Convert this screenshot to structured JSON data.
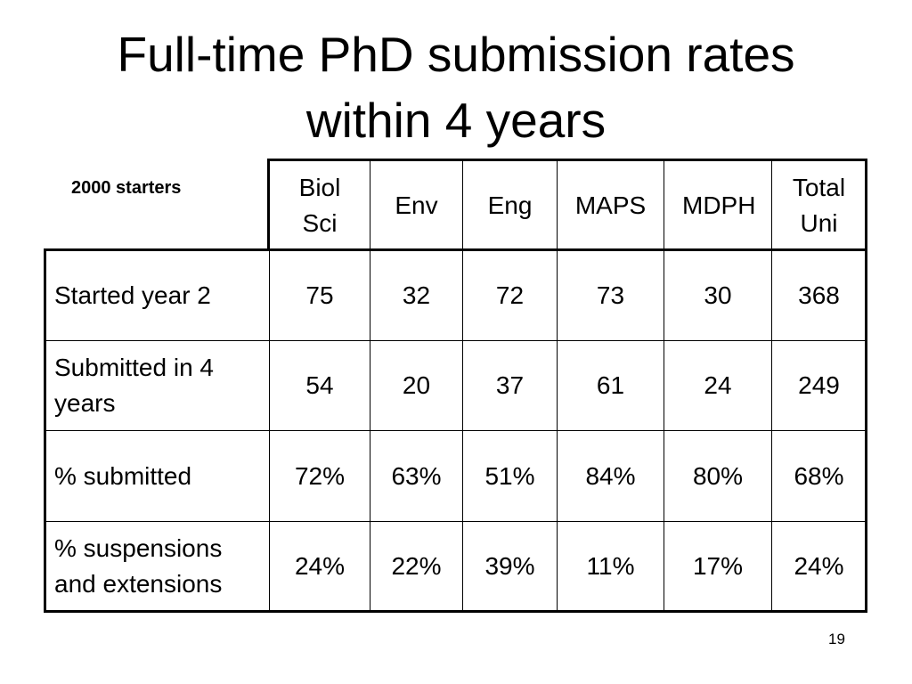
{
  "header": {
    "title": "Full-time PhD submission rates within 4 years"
  },
  "table": {
    "corner": "2000 starters",
    "columns": [
      "Biol Sci",
      "Env",
      "Eng",
      "MAPS",
      "MDPH",
      "Total Uni"
    ],
    "rows": [
      {
        "label": "Started year 2",
        "cells": [
          75,
          32,
          72,
          73,
          30,
          368
        ]
      },
      {
        "label": "Submitted in 4 years",
        "cells": [
          54,
          20,
          37,
          61,
          24,
          249
        ]
      },
      {
        "label": "% submitted",
        "cells": [
          "72%",
          "63%",
          "51%",
          "84%",
          "80%",
          "68%"
        ]
      },
      {
        "label": "% suspensions and extensions",
        "cells": [
          "24%",
          "22%",
          "39%",
          "11%",
          "17%",
          "24%"
        ]
      }
    ]
  },
  "footer": {
    "page_number": "19"
  }
}
